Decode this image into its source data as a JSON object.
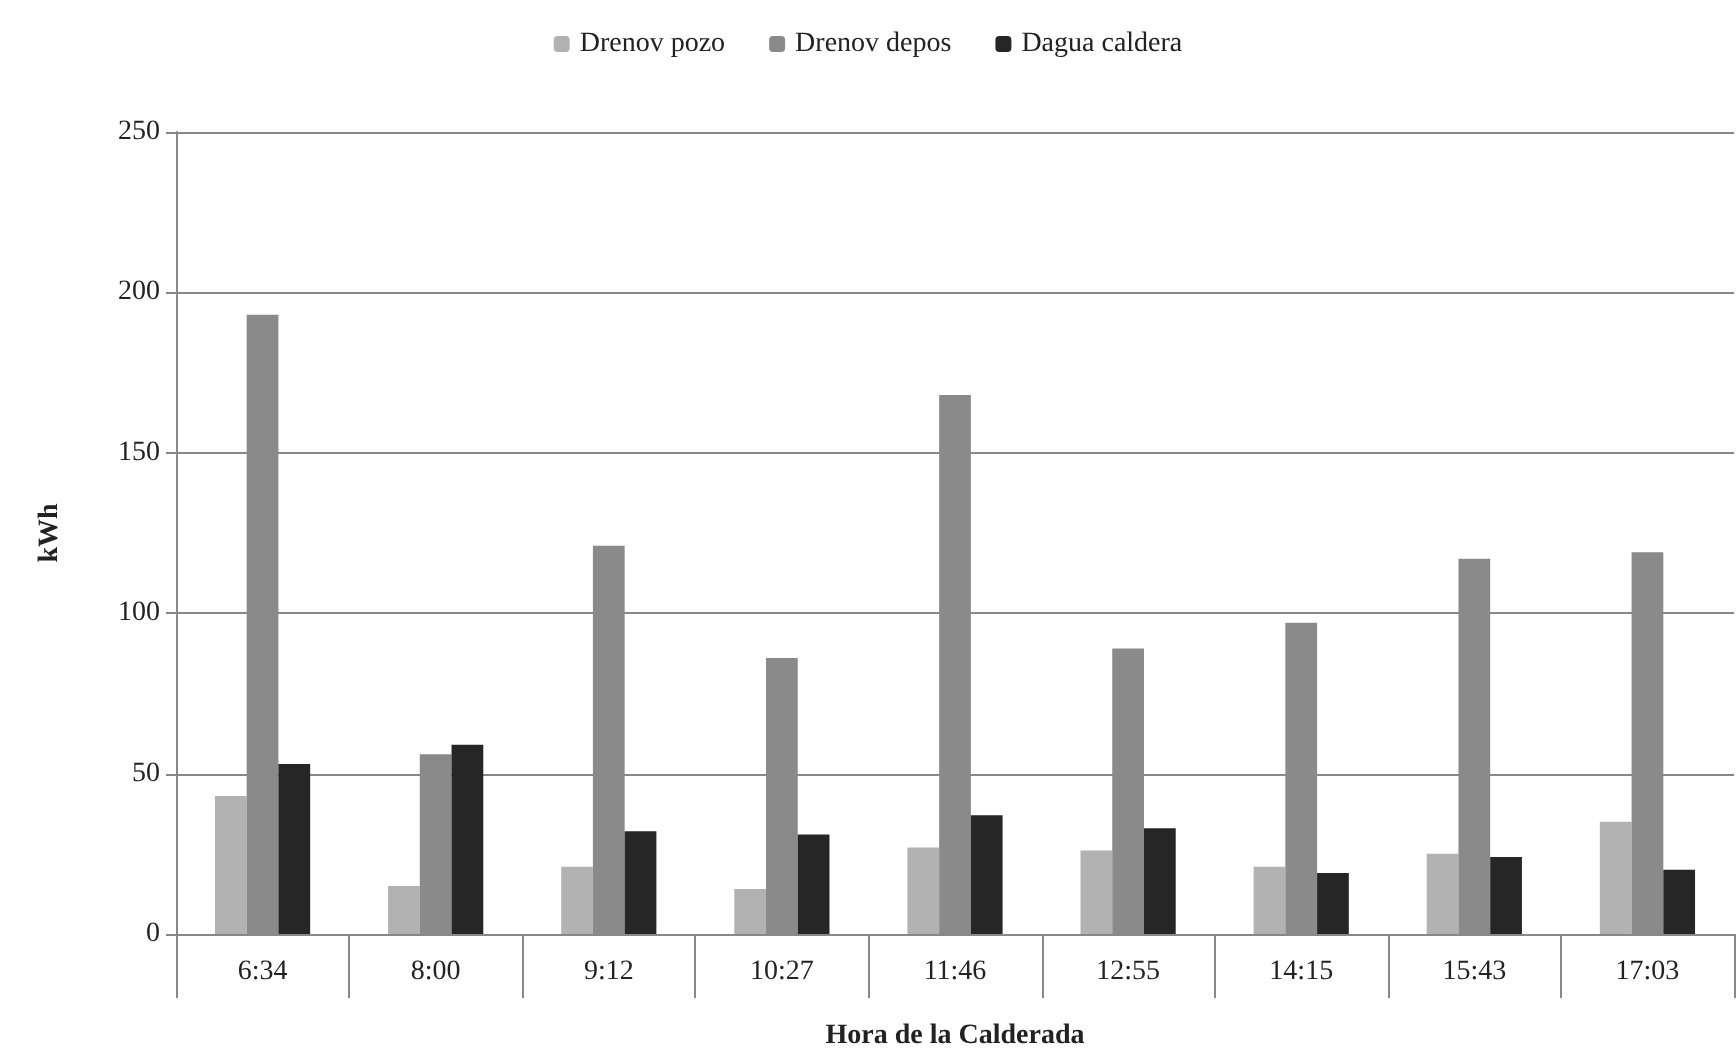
{
  "chart_data": {
    "type": "bar",
    "xlabel": "Hora de la Calderada",
    "ylabel": "kWh",
    "categories": [
      "6:34",
      "8:00",
      "9:12",
      "10:27",
      "11:46",
      "12:55",
      "14:15",
      "15:43",
      "17:03"
    ],
    "series": [
      {
        "name": "Drenov pozo",
        "color": "#b2b2b2",
        "values": [
          43,
          15,
          21,
          14,
          27,
          26,
          21,
          25,
          35
        ]
      },
      {
        "name": "Drenov depos",
        "color": "#8a8a8a",
        "values": [
          193,
          56,
          121,
          86,
          168,
          89,
          97,
          117,
          119
        ]
      },
      {
        "name": "Dagua caldera",
        "color": "#262626",
        "values": [
          53,
          59,
          32,
          31,
          37,
          33,
          19,
          24,
          20
        ]
      }
    ],
    "ylim": [
      0,
      250
    ],
    "yticks": [
      0,
      50,
      100,
      150,
      200,
      250
    ],
    "grid": "y",
    "legend": "top"
  }
}
